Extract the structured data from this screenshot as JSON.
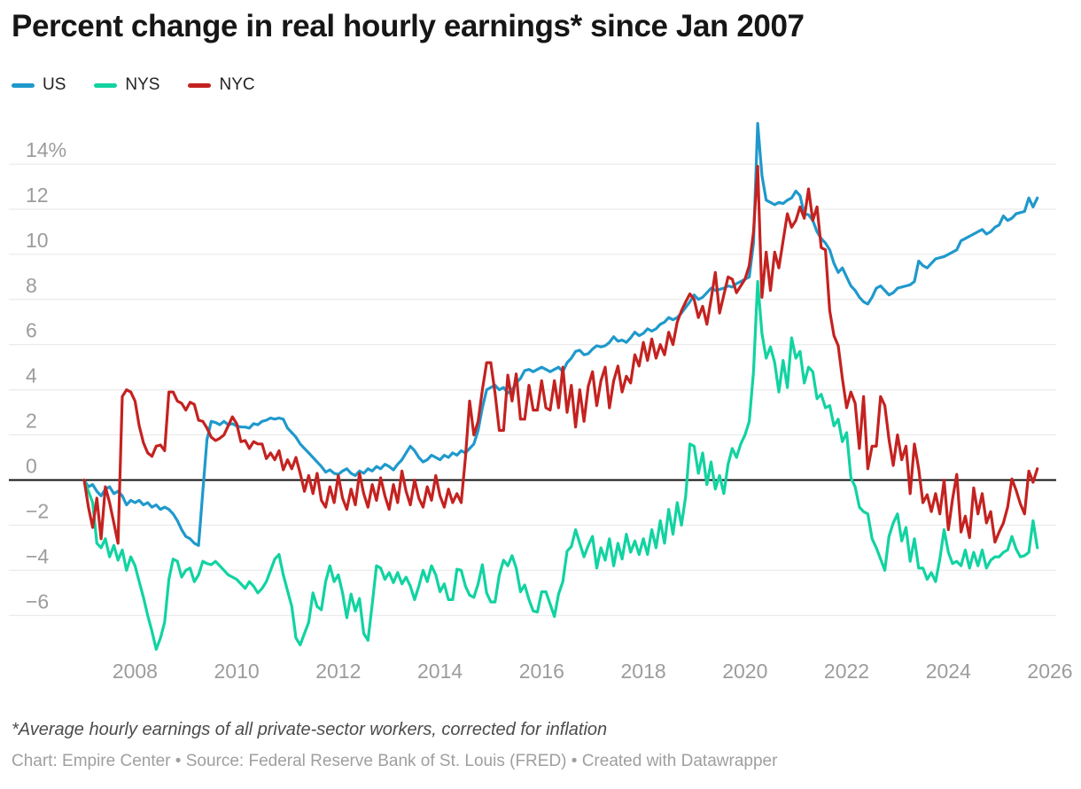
{
  "chart_data": {
    "type": "line",
    "title": "Percent change in real hourly earnings* since Jan 2007",
    "x_unit": "month",
    "x_start": "2007-01",
    "x_end": "2025-10",
    "x_axis_end": "2026-01",
    "x_tick_labels": [
      "2008",
      "2010",
      "2012",
      "2014",
      "2016",
      "2018",
      "2020",
      "2022",
      "2024",
      "2026"
    ],
    "y_tick_values": [
      14,
      12,
      10,
      8,
      6,
      4,
      2,
      0,
      -2,
      -4,
      -6
    ],
    "y_tick_labels": [
      "14%",
      "12",
      "10",
      "8",
      "6",
      "4",
      "2",
      "0",
      "−2",
      "−4",
      "−6"
    ],
    "ylim": [
      -7.9,
      16.2
    ],
    "grid": "horizontal",
    "zero_line": true,
    "legend_position": "top-left",
    "series": [
      {
        "name": "US",
        "color": "#1f99cc",
        "values": [
          0.0,
          -0.3,
          -0.2,
          -0.5,
          -0.7,
          -0.4,
          -0.3,
          -0.6,
          -0.5,
          -0.7,
          -1.1,
          -0.9,
          -1.0,
          -0.9,
          -1.1,
          -1.0,
          -1.2,
          -1.1,
          -1.3,
          -1.2,
          -1.3,
          -1.5,
          -1.8,
          -2.2,
          -2.5,
          -2.6,
          -2.8,
          -2.9,
          -0.5,
          1.8,
          2.6,
          2.55,
          2.45,
          2.6,
          2.45,
          2.5,
          2.4,
          2.35,
          2.35,
          2.3,
          2.5,
          2.45,
          2.6,
          2.65,
          2.75,
          2.7,
          2.75,
          2.7,
          2.3,
          2.1,
          1.9,
          1.6,
          1.4,
          1.2,
          1.0,
          0.8,
          0.6,
          0.35,
          0.45,
          0.3,
          0.25,
          0.4,
          0.5,
          0.3,
          0.2,
          0.4,
          0.3,
          0.5,
          0.4,
          0.6,
          0.5,
          0.7,
          0.6,
          0.45,
          0.7,
          0.9,
          1.2,
          1.5,
          1.3,
          1.0,
          0.8,
          0.9,
          1.1,
          1.0,
          0.9,
          1.1,
          1.0,
          1.2,
          1.1,
          1.3,
          1.2,
          1.4,
          1.6,
          2.2,
          3.2,
          4.0,
          4.1,
          4.2,
          4.0,
          4.1,
          3.85,
          4.0,
          4.3,
          4.5,
          4.85,
          4.9,
          4.8,
          4.9,
          5.0,
          4.9,
          4.8,
          4.9,
          5.0,
          4.8,
          5.2,
          5.4,
          5.7,
          5.75,
          5.55,
          5.6,
          5.8,
          5.95,
          5.9,
          5.95,
          6.1,
          6.35,
          6.15,
          6.2,
          6.1,
          6.3,
          6.55,
          6.4,
          6.5,
          6.7,
          6.6,
          6.7,
          6.9,
          7.0,
          7.2,
          7.1,
          7.2,
          7.4,
          7.65,
          7.9,
          8.2,
          8.0,
          8.1,
          8.3,
          8.5,
          8.4,
          8.45,
          8.5,
          8.6,
          8.55,
          8.7,
          8.8,
          8.9,
          9.0,
          10.5,
          15.8,
          13.5,
          12.4,
          12.3,
          12.2,
          12.3,
          12.25,
          12.4,
          12.5,
          12.8,
          12.6,
          11.8,
          11.75,
          11.5,
          11.0,
          10.7,
          10.5,
          10.2,
          9.6,
          9.2,
          9.4,
          9.0,
          8.6,
          8.4,
          8.1,
          7.9,
          7.8,
          8.1,
          8.5,
          8.6,
          8.4,
          8.2,
          8.3,
          8.5,
          8.55,
          8.6,
          8.65,
          8.8,
          9.7,
          9.5,
          9.4,
          9.6,
          9.8,
          9.85,
          9.9,
          10.0,
          10.1,
          10.2,
          10.6,
          10.7,
          10.8,
          10.9,
          11.0,
          11.1,
          10.9,
          11.0,
          11.2,
          11.3,
          11.7,
          11.5,
          11.6,
          11.8,
          11.85,
          11.9,
          12.5,
          12.1,
          12.5
        ]
      },
      {
        "name": "NYS",
        "color": "#11d3a1",
        "values": [
          0.0,
          -0.5,
          -1.0,
          -2.8,
          -3.0,
          -2.6,
          -3.4,
          -2.9,
          -3.55,
          -3.1,
          -4.0,
          -3.4,
          -3.8,
          -4.5,
          -5.2,
          -6.0,
          -6.7,
          -7.5,
          -7.0,
          -6.3,
          -4.4,
          -3.5,
          -3.6,
          -4.3,
          -4.0,
          -3.9,
          -4.5,
          -4.2,
          -3.6,
          -3.7,
          -3.75,
          -3.6,
          -3.8,
          -4.0,
          -4.2,
          -4.3,
          -4.4,
          -4.6,
          -4.8,
          -4.5,
          -4.7,
          -5.0,
          -4.8,
          -4.5,
          -4.0,
          -3.5,
          -3.3,
          -4.2,
          -4.9,
          -5.6,
          -7.0,
          -7.3,
          -6.8,
          -6.3,
          -5.0,
          -5.6,
          -5.75,
          -4.5,
          -3.8,
          -4.5,
          -4.2,
          -5.0,
          -6.1,
          -5.05,
          -5.8,
          -5.25,
          -6.8,
          -7.1,
          -5.5,
          -3.8,
          -3.9,
          -4.4,
          -4.1,
          -4.55,
          -4.1,
          -4.6,
          -4.3,
          -4.7,
          -5.3,
          -4.7,
          -4.0,
          -4.5,
          -3.8,
          -4.2,
          -4.95,
          -4.6,
          -5.3,
          -5.3,
          -3.95,
          -4.0,
          -4.7,
          -5.1,
          -5.2,
          -4.6,
          -3.75,
          -5.0,
          -5.4,
          -5.4,
          -4.2,
          -3.55,
          -3.8,
          -3.35,
          -3.9,
          -4.95,
          -4.65,
          -5.3,
          -5.8,
          -5.85,
          -4.95,
          -4.95,
          -5.5,
          -6.05,
          -5.05,
          -4.5,
          -3.15,
          -2.95,
          -2.2,
          -2.8,
          -3.4,
          -2.9,
          -2.5,
          -3.9,
          -3.0,
          -3.55,
          -2.6,
          -3.8,
          -2.8,
          -3.5,
          -2.4,
          -3.2,
          -2.7,
          -3.3,
          -2.6,
          -3.3,
          -2.2,
          -3.0,
          -1.8,
          -2.8,
          -1.3,
          -2.4,
          -1.0,
          -2.0,
          -0.7,
          1.6,
          1.5,
          0.3,
          1.2,
          -0.2,
          0.8,
          -0.4,
          0.2,
          -0.6,
          0.7,
          1.4,
          1.0,
          1.6,
          2.0,
          2.6,
          4.8,
          8.8,
          6.5,
          5.4,
          5.9,
          5.2,
          3.9,
          5.3,
          4.1,
          6.3,
          5.4,
          5.7,
          4.3,
          5.0,
          4.8,
          3.6,
          3.8,
          3.2,
          3.3,
          2.4,
          2.7,
          1.7,
          2.1,
          0.1,
          -0.3,
          -1.2,
          -1.4,
          -1.5,
          -2.6,
          -3.0,
          -3.5,
          -4.0,
          -2.5,
          -1.9,
          -1.5,
          -2.7,
          -2.1,
          -3.6,
          -2.6,
          -3.9,
          -3.9,
          -4.4,
          -4.1,
          -4.5,
          -3.5,
          -2.2,
          -3.2,
          -3.7,
          -3.6,
          -3.8,
          -3.1,
          -3.9,
          -3.2,
          -3.8,
          -3.1,
          -3.9,
          -3.55,
          -3.4,
          -3.4,
          -3.2,
          -3.1,
          -2.5,
          -3.05,
          -3.4,
          -3.35,
          -3.2,
          -1.8,
          -3.0
        ]
      },
      {
        "name": "NYC",
        "color": "#c42220",
        "values": [
          0.0,
          -1.2,
          -2.1,
          -0.8,
          -2.6,
          -0.3,
          -1.0,
          -1.9,
          -2.8,
          3.7,
          4.0,
          3.9,
          3.5,
          2.4,
          1.65,
          1.2,
          1.05,
          1.5,
          1.55,
          1.3,
          3.9,
          3.9,
          3.5,
          3.4,
          3.1,
          3.45,
          3.35,
          2.65,
          2.6,
          2.3,
          1.9,
          1.75,
          1.85,
          2.0,
          2.4,
          2.8,
          2.5,
          1.7,
          1.75,
          1.4,
          1.7,
          1.6,
          1.6,
          0.95,
          1.2,
          0.9,
          1.3,
          0.45,
          0.9,
          0.5,
          1.0,
          0.3,
          -0.5,
          0.2,
          -0.6,
          0.3,
          -0.9,
          -1.2,
          -0.3,
          -1.0,
          0.2,
          -0.8,
          -1.3,
          -0.4,
          -1.1,
          0.3,
          -0.6,
          -1.2,
          -0.2,
          -0.9,
          0.1,
          -0.7,
          -1.3,
          -0.2,
          -1.0,
          0.4,
          -0.5,
          -1.1,
          0.0,
          -0.8,
          -1.2,
          -0.3,
          -0.9,
          0.2,
          -0.7,
          -1.2,
          -0.4,
          -1.0,
          -0.6,
          -1.0,
          1.0,
          3.5,
          2.0,
          2.6,
          4.0,
          5.2,
          5.2,
          3.85,
          2.2,
          2.2,
          4.65,
          3.5,
          4.7,
          2.7,
          2.7,
          4.2,
          3.1,
          3.1,
          4.4,
          3.2,
          3.1,
          4.4,
          3.2,
          5.0,
          3.0,
          4.2,
          2.35,
          4.0,
          2.6,
          4.15,
          4.8,
          3.3,
          4.4,
          5.0,
          3.2,
          4.4,
          5.05,
          3.9,
          4.6,
          4.3,
          5.55,
          5.05,
          6.1,
          5.3,
          6.25,
          5.4,
          6.0,
          5.55,
          6.55,
          6.0,
          7.0,
          7.5,
          7.9,
          8.25,
          8.0,
          7.2,
          7.7,
          6.9,
          8.0,
          9.2,
          7.4,
          8.2,
          9.0,
          8.9,
          8.3,
          8.6,
          8.9,
          9.5,
          11.0,
          13.9,
          8.1,
          10.1,
          8.4,
          10.1,
          9.4,
          10.6,
          11.8,
          11.2,
          11.5,
          12.1,
          11.6,
          12.9,
          11.5,
          12.1,
          10.3,
          10.2,
          7.5,
          6.4,
          5.95,
          4.5,
          3.2,
          3.9,
          3.4,
          1.4,
          3.7,
          0.5,
          1.5,
          1.5,
          3.7,
          3.3,
          1.8,
          0.65,
          2.0,
          0.9,
          1.5,
          -0.6,
          1.6,
          0.5,
          -1.0,
          -0.65,
          -1.4,
          -0.6,
          -1.5,
          0.0,
          -2.2,
          -0.85,
          0.25,
          -2.3,
          -1.6,
          -2.55,
          -0.35,
          -1.5,
          -0.6,
          -1.9,
          -1.4,
          -2.75,
          -2.3,
          -1.9,
          -1.2,
          0.05,
          -0.45,
          -1.05,
          -1.5,
          0.4,
          -0.1,
          0.5
        ]
      }
    ]
  },
  "footer": {
    "footnote": "*Average hourly earnings of all private-sector workers, corrected for inflation",
    "credit": "Chart: Empire Center • Source: Federal Reserve Bank of St. Louis (FRED) • Created with Datawrapper"
  }
}
